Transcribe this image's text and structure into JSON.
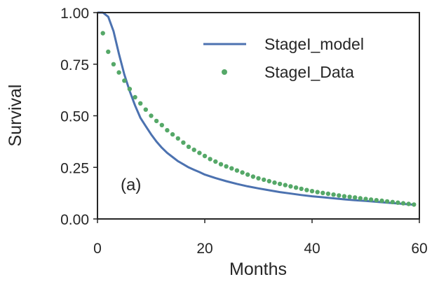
{
  "chart_data": {
    "type": "line",
    "xlabel": "Months",
    "ylabel": "Survival",
    "xlim": [
      0,
      60
    ],
    "ylim": [
      0,
      1
    ],
    "xticks": [
      0,
      20,
      40,
      60
    ],
    "xtick_labels": [
      "0",
      "20",
      "40",
      "60"
    ],
    "yticks": [
      0,
      0.25,
      0.5,
      0.75,
      1.0
    ],
    "ytick_labels": [
      "0.00",
      "0.25",
      "0.50",
      "0.75",
      "1.00"
    ],
    "annotation": "(a)",
    "grid": false,
    "legend": "top-right",
    "series": [
      {
        "name": "StageI_model",
        "kind": "line",
        "color": "#4c72b0",
        "x": [
          0,
          1,
          2,
          3,
          4,
          5,
          6,
          7,
          8,
          9,
          10,
          11,
          12,
          13,
          14,
          15,
          16,
          17,
          18,
          19,
          20,
          22,
          24,
          26,
          28,
          30,
          32,
          34,
          36,
          38,
          40,
          42,
          44,
          46,
          48,
          50,
          52,
          54,
          56,
          58,
          59
        ],
        "y": [
          1.0,
          1.0,
          0.98,
          0.91,
          0.8,
          0.7,
          0.62,
          0.55,
          0.49,
          0.45,
          0.41,
          0.375,
          0.345,
          0.32,
          0.3,
          0.28,
          0.265,
          0.25,
          0.238,
          0.227,
          0.215,
          0.198,
          0.183,
          0.17,
          0.158,
          0.148,
          0.139,
          0.13,
          0.123,
          0.116,
          0.11,
          0.105,
          0.1,
          0.095,
          0.091,
          0.087,
          0.083,
          0.079,
          0.075,
          0.071,
          0.069
        ]
      },
      {
        "name": "StageI_Data",
        "kind": "scatter",
        "color": "#55a868",
        "x": [
          1,
          2,
          3,
          4,
          5,
          6,
          7,
          8,
          9,
          10,
          11,
          12,
          13,
          14,
          15,
          16,
          17,
          18,
          19,
          20,
          21,
          22,
          23,
          24,
          25,
          26,
          27,
          28,
          29,
          30,
          31,
          32,
          33,
          34,
          35,
          36,
          37,
          38,
          39,
          40,
          41,
          42,
          43,
          44,
          45,
          46,
          47,
          48,
          49,
          50,
          51,
          52,
          53,
          54,
          55,
          56,
          57,
          58,
          59
        ],
        "y": [
          0.9,
          0.81,
          0.75,
          0.71,
          0.67,
          0.63,
          0.59,
          0.56,
          0.53,
          0.5,
          0.475,
          0.455,
          0.43,
          0.41,
          0.39,
          0.37,
          0.35,
          0.335,
          0.32,
          0.305,
          0.29,
          0.278,
          0.265,
          0.255,
          0.245,
          0.235,
          0.225,
          0.215,
          0.205,
          0.197,
          0.19,
          0.183,
          0.176,
          0.17,
          0.164,
          0.158,
          0.152,
          0.146,
          0.14,
          0.135,
          0.13,
          0.126,
          0.122,
          0.118,
          0.114,
          0.11,
          0.107,
          0.104,
          0.1,
          0.097,
          0.094,
          0.091,
          0.088,
          0.085,
          0.082,
          0.079,
          0.076,
          0.073,
          0.07
        ]
      }
    ]
  }
}
